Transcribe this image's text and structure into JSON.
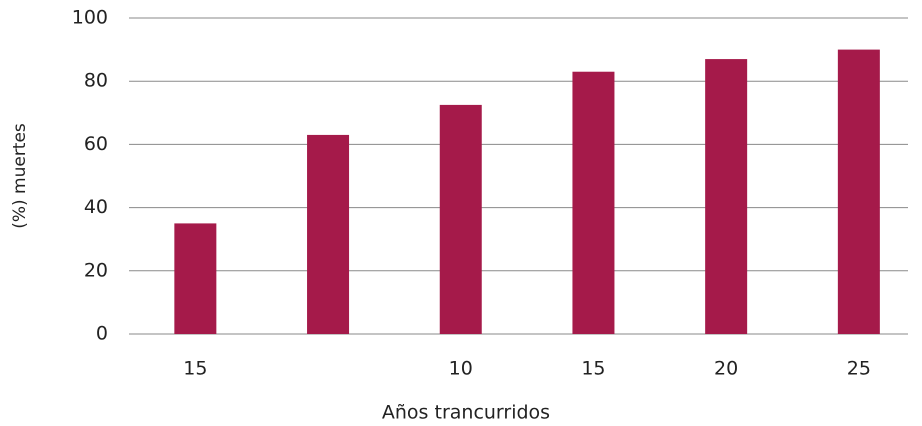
{
  "chart_data": {
    "type": "bar",
    "categories": [
      "15",
      null,
      "10",
      "15",
      "20",
      "25"
    ],
    "values": [
      35,
      63,
      72.5,
      83,
      87,
      90
    ],
    "color": "#a51a4a",
    "xlabel": "Años trancurridos",
    "ylabel": "(%) muertes",
    "ylim": [
      0,
      100
    ],
    "yticks": [
      0,
      20,
      40,
      60,
      80,
      100
    ],
    "grid": true
  }
}
